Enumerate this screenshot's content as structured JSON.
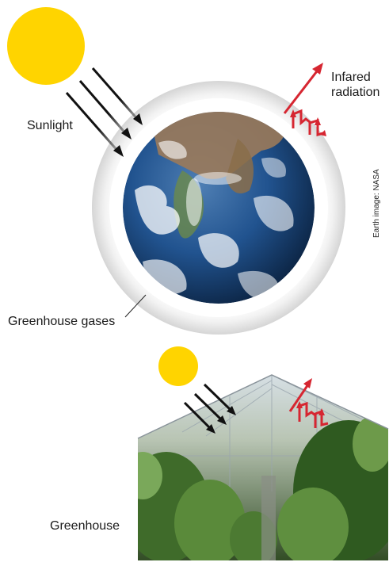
{
  "labels": {
    "sunlight": "Sunlight",
    "infrared_line1": "Infared",
    "infrared_line2": "radiation",
    "greenhouse_gases": "Greenhouse gases",
    "greenhouse": "Greenhouse",
    "credit": "Earth image: NASA"
  },
  "colors": {
    "sun": "#FFD400",
    "infrared_arrow": "#D62631",
    "sunlight_arrow": "#111111",
    "atmosphere": "#E6E6E6",
    "ocean": "#1F4F8C",
    "glass": "#DDE4EA",
    "foliage": "#3F6B2A"
  },
  "icons": [
    "sun-icon",
    "earth-icon",
    "greenhouse-icon"
  ]
}
